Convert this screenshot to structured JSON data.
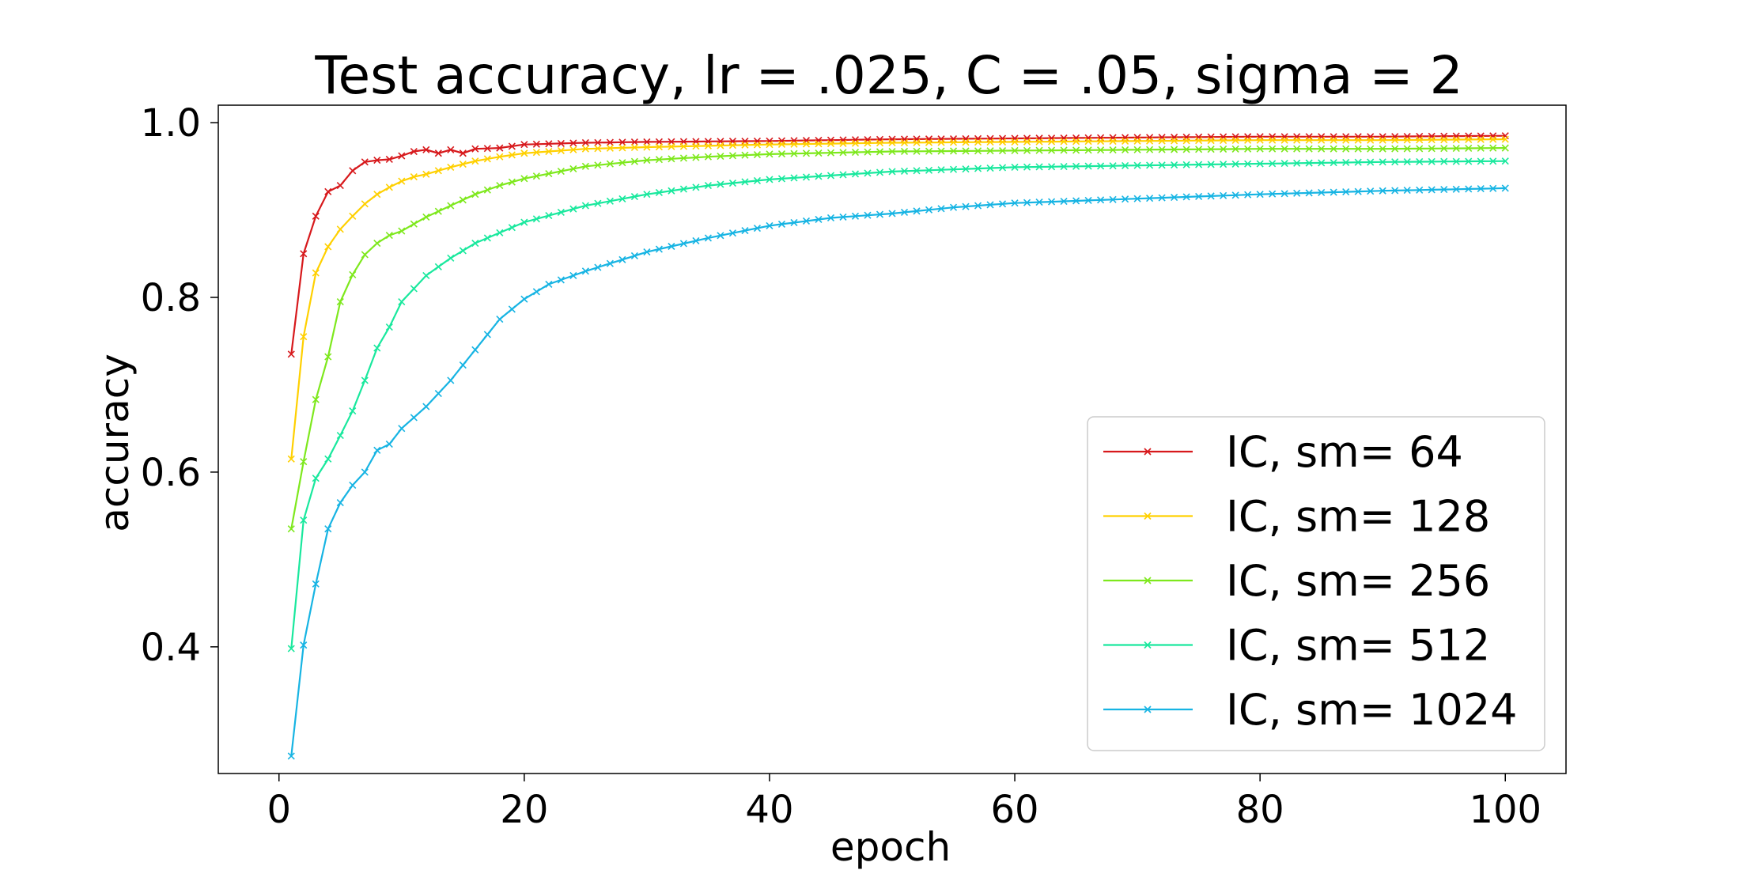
{
  "chart_data": {
    "type": "line",
    "title": "Test accuracy, lr = .025, C = .05, sigma = 2",
    "xlabel": "epoch",
    "ylabel": "accuracy",
    "xlim": [
      -4.95,
      104.95
    ],
    "ylim": [
      0.255,
      1.02
    ],
    "xticks": [
      0,
      20,
      40,
      60,
      80,
      100
    ],
    "yticks": [
      0.4,
      0.6,
      0.8,
      1.0
    ],
    "xtick_labels": [
      "0",
      "20",
      "40",
      "60",
      "80",
      "100"
    ],
    "ytick_labels": [
      "0.4",
      "0.6",
      "0.8",
      "1.0"
    ],
    "marker": "x",
    "grid": false,
    "legend": "lower-right",
    "series": [
      {
        "name": "IC, sm= 64",
        "color": "#d7191c",
        "anchors": [
          [
            1,
            0.735
          ],
          [
            2,
            0.85
          ],
          [
            3,
            0.893
          ],
          [
            4,
            0.921
          ],
          [
            5,
            0.928
          ],
          [
            6,
            0.945
          ],
          [
            7,
            0.955
          ],
          [
            8,
            0.957
          ],
          [
            9,
            0.958
          ],
          [
            10,
            0.962
          ],
          [
            11,
            0.967
          ],
          [
            12,
            0.969
          ],
          [
            13,
            0.965
          ],
          [
            14,
            0.969
          ],
          [
            15,
            0.965
          ],
          [
            16,
            0.97
          ],
          [
            18,
            0.971
          ],
          [
            20,
            0.975
          ],
          [
            25,
            0.977
          ],
          [
            30,
            0.978
          ],
          [
            40,
            0.979
          ],
          [
            50,
            0.981
          ],
          [
            60,
            0.982
          ],
          [
            70,
            0.983
          ],
          [
            80,
            0.984
          ],
          [
            90,
            0.984
          ],
          [
            100,
            0.985
          ]
        ]
      },
      {
        "name": "IC, sm= 128",
        "color": "#ffd000",
        "anchors": [
          [
            1,
            0.615
          ],
          [
            2,
            0.755
          ],
          [
            3,
            0.828
          ],
          [
            4,
            0.858
          ],
          [
            5,
            0.878
          ],
          [
            6,
            0.893
          ],
          [
            7,
            0.907
          ],
          [
            8,
            0.918
          ],
          [
            9,
            0.926
          ],
          [
            10,
            0.933
          ],
          [
            11,
            0.938
          ],
          [
            12,
            0.941
          ],
          [
            14,
            0.949
          ],
          [
            16,
            0.956
          ],
          [
            18,
            0.961
          ],
          [
            20,
            0.965
          ],
          [
            25,
            0.97
          ],
          [
            30,
            0.972
          ],
          [
            40,
            0.975
          ],
          [
            50,
            0.977
          ],
          [
            60,
            0.978
          ],
          [
            70,
            0.979
          ],
          [
            80,
            0.98
          ],
          [
            90,
            0.98
          ],
          [
            100,
            0.981
          ]
        ]
      },
      {
        "name": "IC, sm= 256",
        "color": "#7ee81d",
        "anchors": [
          [
            1,
            0.535
          ],
          [
            2,
            0.612
          ],
          [
            3,
            0.683
          ],
          [
            4,
            0.732
          ],
          [
            5,
            0.795
          ],
          [
            6,
            0.826
          ],
          [
            7,
            0.849
          ],
          [
            8,
            0.862
          ],
          [
            9,
            0.871
          ],
          [
            10,
            0.876
          ],
          [
            12,
            0.892
          ],
          [
            14,
            0.905
          ],
          [
            16,
            0.918
          ],
          [
            18,
            0.928
          ],
          [
            20,
            0.936
          ],
          [
            25,
            0.95
          ],
          [
            30,
            0.957
          ],
          [
            35,
            0.961
          ],
          [
            40,
            0.964
          ],
          [
            50,
            0.967
          ],
          [
            60,
            0.968
          ],
          [
            70,
            0.969
          ],
          [
            80,
            0.97
          ],
          [
            90,
            0.97
          ],
          [
            100,
            0.971
          ]
        ]
      },
      {
        "name": "IC, sm= 512",
        "color": "#19e89d",
        "anchors": [
          [
            1,
            0.398
          ],
          [
            2,
            0.545
          ],
          [
            3,
            0.593
          ],
          [
            4,
            0.615
          ],
          [
            5,
            0.642
          ],
          [
            6,
            0.67
          ],
          [
            7,
            0.705
          ],
          [
            8,
            0.742
          ],
          [
            9,
            0.766
          ],
          [
            10,
            0.795
          ],
          [
            12,
            0.825
          ],
          [
            14,
            0.845
          ],
          [
            16,
            0.862
          ],
          [
            18,
            0.874
          ],
          [
            20,
            0.886
          ],
          [
            25,
            0.905
          ],
          [
            30,
            0.918
          ],
          [
            35,
            0.928
          ],
          [
            40,
            0.935
          ],
          [
            50,
            0.944
          ],
          [
            60,
            0.949
          ],
          [
            70,
            0.951
          ],
          [
            80,
            0.953
          ],
          [
            90,
            0.955
          ],
          [
            100,
            0.956
          ]
        ]
      },
      {
        "name": "IC, sm= 1024",
        "color": "#17b4e3",
        "anchors": [
          [
            1,
            0.275
          ],
          [
            2,
            0.402
          ],
          [
            3,
            0.472
          ],
          [
            4,
            0.535
          ],
          [
            5,
            0.565
          ],
          [
            6,
            0.585
          ],
          [
            7,
            0.6
          ],
          [
            8,
            0.625
          ],
          [
            9,
            0.632
          ],
          [
            10,
            0.65
          ],
          [
            12,
            0.675
          ],
          [
            14,
            0.705
          ],
          [
            16,
            0.74
          ],
          [
            18,
            0.775
          ],
          [
            20,
            0.798
          ],
          [
            22,
            0.815
          ],
          [
            25,
            0.83
          ],
          [
            30,
            0.852
          ],
          [
            35,
            0.868
          ],
          [
            40,
            0.882
          ],
          [
            45,
            0.891
          ],
          [
            50,
            0.896
          ],
          [
            55,
            0.903
          ],
          [
            60,
            0.908
          ],
          [
            70,
            0.913
          ],
          [
            80,
            0.918
          ],
          [
            90,
            0.922
          ],
          [
            100,
            0.925
          ]
        ]
      }
    ]
  }
}
